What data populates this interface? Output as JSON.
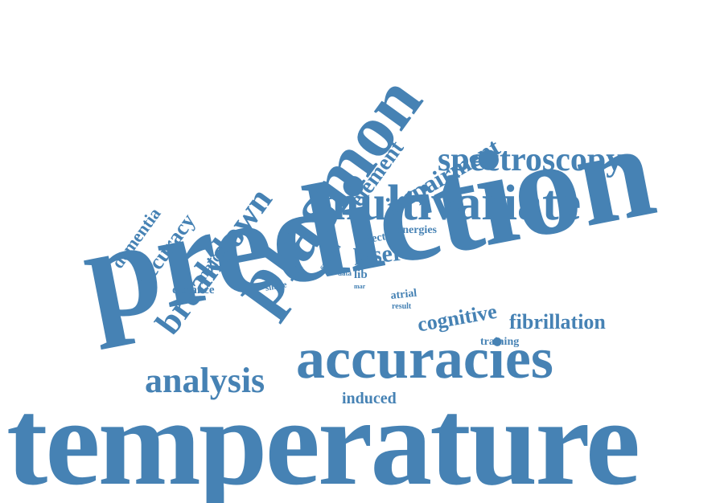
{
  "color": "#4682b4",
  "words": {
    "temperature": "temperature",
    "prediction": "prediction",
    "plasmon": "plasmon",
    "multivariate": "multivariate",
    "accuracies": "accuracies",
    "analysis": "analysis",
    "spectroscopy": "spectroscopy",
    "breakdown": "breakdown",
    "impairment": "impairment",
    "element": "element",
    "accuracy": "accuracy",
    "dementia": "dementia",
    "major": "major",
    "fibrillation": "fibrillation",
    "cognitive": "cognitive",
    "laser": "laser",
    "energies": "energies",
    "effect": "effect",
    "lib": "lib",
    "spectra": "spectra",
    "distance": "distance",
    "single": "single",
    "data": "data",
    "mar": "mar",
    "atrial": "atrial",
    "result": "result",
    "training": "training",
    "induced": "induced"
  }
}
